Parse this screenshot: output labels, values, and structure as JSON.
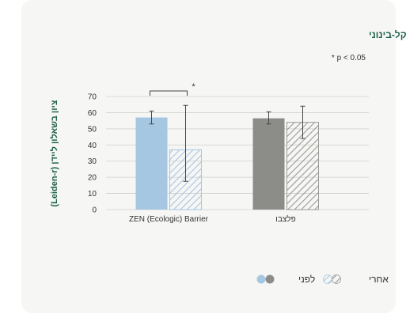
{
  "chart_data": {
    "type": "bar",
    "title": "דכאון קל-בינוני",
    "note": "* p < 0.05",
    "ylabel": "ציון בשאלון ליידן (Leiden-r)",
    "ylim": [
      0,
      70
    ],
    "yticks": [
      0,
      10,
      20,
      30,
      40,
      50,
      60,
      70
    ],
    "categories": [
      "ZEN (Ecologic) Barrier",
      "פלצבו"
    ],
    "series": [
      {
        "name": "לפני",
        "values": [
          57,
          56.5
        ],
        "errors": [
          [
            53,
            61
          ],
          [
            53,
            60.5
          ]
        ],
        "pattern": "solid"
      },
      {
        "name": "אחרי",
        "values": [
          37,
          54
        ],
        "errors": [
          [
            17.5,
            64.5
          ],
          [
            44,
            64
          ]
        ],
        "pattern": "hatched"
      }
    ],
    "significance": {
      "category_index": 0,
      "label": "*"
    },
    "colors": {
      "zen": "#a6c7e2",
      "zen_hatch": "#a6c7e2",
      "placebo": "#8c8c89",
      "placebo_hatch": "#9a9a97",
      "title": "#1d5f4b",
      "grid": "#cfcfcc",
      "text": "#333333"
    }
  },
  "legend": {
    "before_label": "לפני",
    "after_label": "אחרי"
  }
}
